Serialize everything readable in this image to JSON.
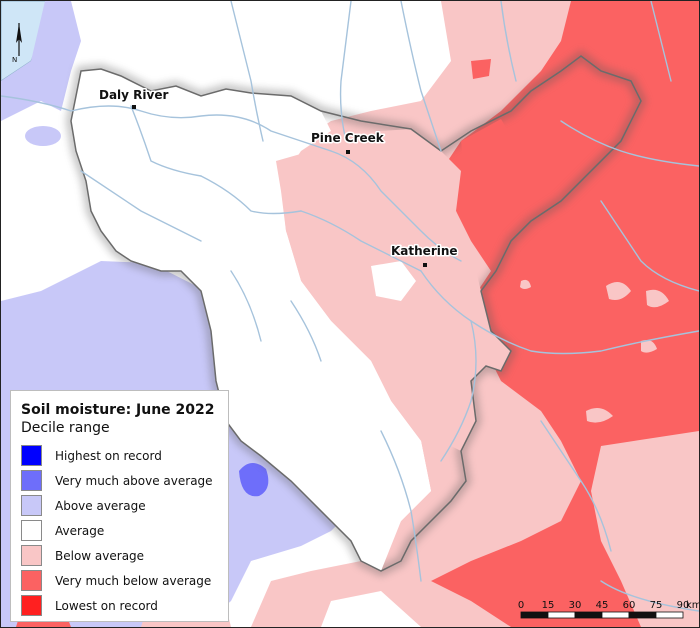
{
  "legend": {
    "title": "Soil moisture: June 2022",
    "subtitle": "Decile range",
    "items": [
      {
        "label": "Highest on record",
        "color": "#0000ff"
      },
      {
        "label": "Very much above average",
        "color": "#6e6efa"
      },
      {
        "label": "Above average",
        "color": "#c8c8f8"
      },
      {
        "label": "Average",
        "color": "#ffffff"
      },
      {
        "label": "Below average",
        "color": "#f9c6c6"
      },
      {
        "label": "Very much below average",
        "color": "#fb6262"
      },
      {
        "label": "Lowest on record",
        "color": "#ff2020"
      }
    ]
  },
  "places": {
    "daly_river": "Daly River",
    "pine_creek": "Pine Creek",
    "katherine": "Katherine"
  },
  "north_arrow": {
    "label": "N"
  },
  "scale_bar": {
    "ticks": [
      "0",
      "15",
      "30",
      "45",
      "60",
      "75",
      "90"
    ],
    "unit": "km"
  }
}
